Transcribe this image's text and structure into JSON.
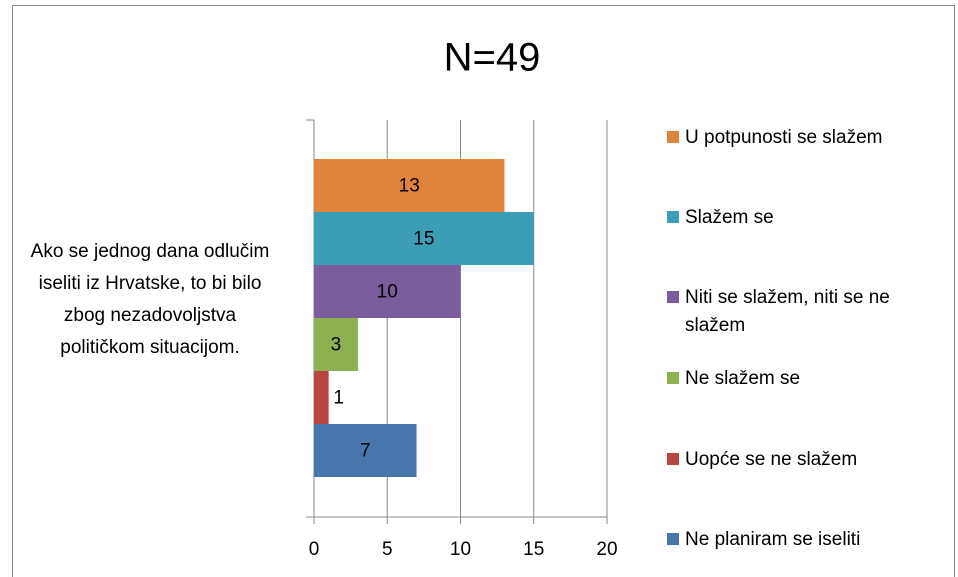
{
  "chart_data": {
    "type": "bar",
    "orientation": "horizontal",
    "title": "N=49",
    "categories": [
      "Ako se jednog dana odlučim iseliti iz Hrvatske, to bi bilo zbog nezadovoljstva političkom situacijom."
    ],
    "series": [
      {
        "name": "U potpunosti se slažem",
        "color": "#e0843c",
        "values": [
          13
        ]
      },
      {
        "name": "Slažem se",
        "color": "#3c9db6",
        "values": [
          15
        ]
      },
      {
        "name": "Niti se slažem, niti se ne slažem",
        "color": "#7b5c9c",
        "values": [
          10
        ]
      },
      {
        "name": "Ne slažem se",
        "color": "#8fb050",
        "values": [
          3
        ]
      },
      {
        "name": "Uopće se ne slažem",
        "color": "#b6463f",
        "values": [
          1
        ]
      },
      {
        "name": "Ne planiram se iseliti",
        "color": "#4876ad",
        "values": [
          7
        ]
      }
    ],
    "xlim": [
      0,
      20
    ],
    "xticks": [
      0,
      5,
      10,
      15,
      20
    ],
    "grid": true,
    "legend": "right"
  }
}
